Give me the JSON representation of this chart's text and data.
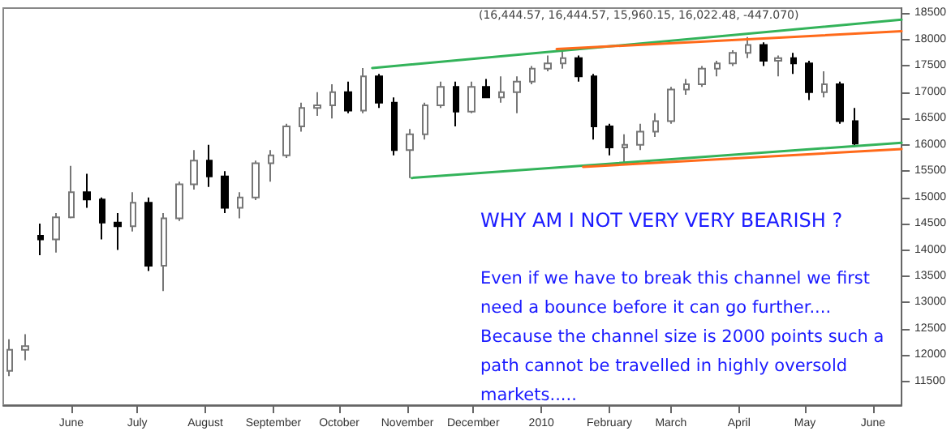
{
  "chart_data": {
    "type": "candlestick",
    "title": "(16,444.57, 16,444.57, 15,960.15, 16,022.48, -447.070)",
    "annotations": [
      "WHY AM I NOT VERY VERY BEARISH ?",
      "Even if we have to break this channel we first need a bounce before it can go further.... Because the channel size is 2000 points such a path cannot be travelled in highly oversold markets....."
    ],
    "x": [
      "2009-05-04",
      "2009-05-11",
      "2009-05-18",
      "2009-05-25",
      "2009-06-01",
      "2009-06-08",
      "2009-06-15",
      "2009-06-22",
      "2009-06-29",
      "2009-07-06",
      "2009-07-13",
      "2009-07-20",
      "2009-07-27",
      "2009-08-03",
      "2009-08-10",
      "2009-08-17",
      "2009-08-24",
      "2009-08-31",
      "2009-09-07",
      "2009-09-14",
      "2009-09-21",
      "2009-09-28",
      "2009-10-05",
      "2009-10-12",
      "2009-10-19",
      "2009-10-26",
      "2009-11-02",
      "2009-11-09",
      "2009-11-16",
      "2009-11-23",
      "2009-11-30",
      "2009-12-07",
      "2009-12-14",
      "2009-12-21",
      "2009-12-28",
      "2010-01-04",
      "2010-01-11",
      "2010-01-18",
      "2010-01-25",
      "2010-02-01",
      "2010-02-08",
      "2010-02-15",
      "2010-02-22",
      "2010-03-01",
      "2010-03-08",
      "2010-03-15",
      "2010-03-22",
      "2010-03-29",
      "2010-04-05",
      "2010-04-12",
      "2010-04-19",
      "2010-04-26",
      "2010-05-03",
      "2010-05-10",
      "2010-05-17",
      "2010-05-24"
    ],
    "ohlc": [
      [
        11700,
        12300,
        11600,
        12100
      ],
      [
        12100,
        12400,
        11900,
        12170
      ],
      [
        14270,
        14500,
        13900,
        14200
      ],
      [
        14200,
        14700,
        13950,
        14620
      ],
      [
        14620,
        15600,
        14600,
        15100
      ],
      [
        15100,
        15450,
        14800,
        14960
      ],
      [
        14960,
        15000,
        14200,
        14520
      ],
      [
        14520,
        14700,
        14000,
        14450
      ],
      [
        14450,
        15100,
        14350,
        14900
      ],
      [
        14900,
        15000,
        13600,
        13700
      ],
      [
        13700,
        14700,
        13220,
        14600
      ],
      [
        14600,
        15300,
        14550,
        15250
      ],
      [
        15250,
        15900,
        15150,
        15700
      ],
      [
        15700,
        16000,
        15200,
        15400
      ],
      [
        15400,
        15500,
        14700,
        14800
      ],
      [
        14800,
        15100,
        14600,
        15000
      ],
      [
        15000,
        15700,
        14950,
        15650
      ],
      [
        15650,
        15900,
        15300,
        15800
      ],
      [
        15800,
        16400,
        15750,
        16350
      ],
      [
        16350,
        16800,
        16250,
        16700
      ],
      [
        16700,
        17000,
        16550,
        16750
      ],
      [
        16750,
        17150,
        16500,
        17000
      ],
      [
        17000,
        17200,
        16600,
        16650
      ],
      [
        16650,
        17460,
        16600,
        17300
      ],
      [
        17300,
        17350,
        16700,
        16800
      ],
      [
        16800,
        16900,
        15800,
        15900
      ],
      [
        15900,
        16300,
        15370,
        16200
      ],
      [
        16200,
        16800,
        16100,
        16750
      ],
      [
        16750,
        17200,
        16700,
        17100
      ],
      [
        17100,
        17200,
        16350,
        16630
      ],
      [
        16630,
        17200,
        16600,
        17100
      ],
      [
        17100,
        17250,
        16900,
        16900
      ],
      [
        16900,
        17300,
        16800,
        17000
      ],
      [
        17000,
        17300,
        16600,
        17200
      ],
      [
        17200,
        17500,
        17150,
        17450
      ],
      [
        17450,
        17700,
        17400,
        17550
      ],
      [
        17550,
        17800,
        17450,
        17650
      ],
      [
        17650,
        17700,
        17200,
        17300
      ],
      [
        17300,
        17350,
        16100,
        16350
      ],
      [
        16350,
        16400,
        15800,
        15950
      ],
      [
        15950,
        16200,
        15650,
        16000
      ],
      [
        16000,
        16400,
        15900,
        16250
      ],
      [
        16250,
        16600,
        16150,
        16450
      ],
      [
        16450,
        17100,
        16400,
        17050
      ],
      [
        17050,
        17250,
        16950,
        17150
      ],
      [
        17150,
        17500,
        17100,
        17450
      ],
      [
        17450,
        17600,
        17300,
        17550
      ],
      [
        17550,
        17800,
        17500,
        17750
      ],
      [
        17750,
        18050,
        17650,
        17900
      ],
      [
        17900,
        17950,
        17500,
        17600
      ],
      [
        17600,
        17700,
        17300,
        17650
      ],
      [
        17650,
        17750,
        17350,
        17550
      ],
      [
        17550,
        17600,
        16850,
        17000
      ],
      [
        17000,
        17400,
        16900,
        17150
      ],
      [
        17150,
        17200,
        16400,
        16450
      ],
      [
        16450,
        16700,
        15960,
        16022
      ]
    ],
    "series": [
      {
        "type": "line",
        "color": "#33b35a",
        "x": [
          "2009-10-16",
          "2010-06-14"
        ],
        "values": [
          17460,
          18380
        ]
      },
      {
        "type": "line",
        "color": "#33b35a",
        "x": [
          "2009-11-03",
          "2010-06-14"
        ],
        "values": [
          15370,
          16040
        ]
      },
      {
        "type": "line",
        "color": "#ff6a1a",
        "x": [
          "2010-01-08",
          "2010-06-14"
        ],
        "values": [
          17820,
          18160
        ]
      },
      {
        "type": "line",
        "color": "#ff6a1a",
        "x": [
          "2010-01-20",
          "2010-06-14"
        ],
        "values": [
          15580,
          15920
        ]
      }
    ],
    "xlim": [
      "2009-05-01",
      "2010-06-14"
    ],
    "xticks": [
      {
        "value": "2009-06-01",
        "label": "June"
      },
      {
        "value": "2009-07-01",
        "label": "July"
      },
      {
        "value": "2009-08-01",
        "label": "August"
      },
      {
        "value": "2009-09-01",
        "label": "September"
      },
      {
        "value": "2009-10-01",
        "label": "October"
      },
      {
        "value": "2009-11-01",
        "label": "November"
      },
      {
        "value": "2009-12-01",
        "label": "December"
      },
      {
        "value": "2010-01-01",
        "label": "2010"
      },
      {
        "value": "2010-02-01",
        "label": "February"
      },
      {
        "value": "2010-03-01",
        "label": "March"
      },
      {
        "value": "2010-04-01",
        "label": "April"
      },
      {
        "value": "2010-05-01",
        "label": "May"
      },
      {
        "value": "2010-06-01",
        "label": "June"
      }
    ],
    "ylim": [
      11050,
      18600
    ],
    "yticks": [
      11500,
      12000,
      12500,
      13000,
      13500,
      14000,
      14500,
      15000,
      15500,
      16000,
      16500,
      17000,
      17500,
      18000,
      18500
    ],
    "grid": false
  }
}
